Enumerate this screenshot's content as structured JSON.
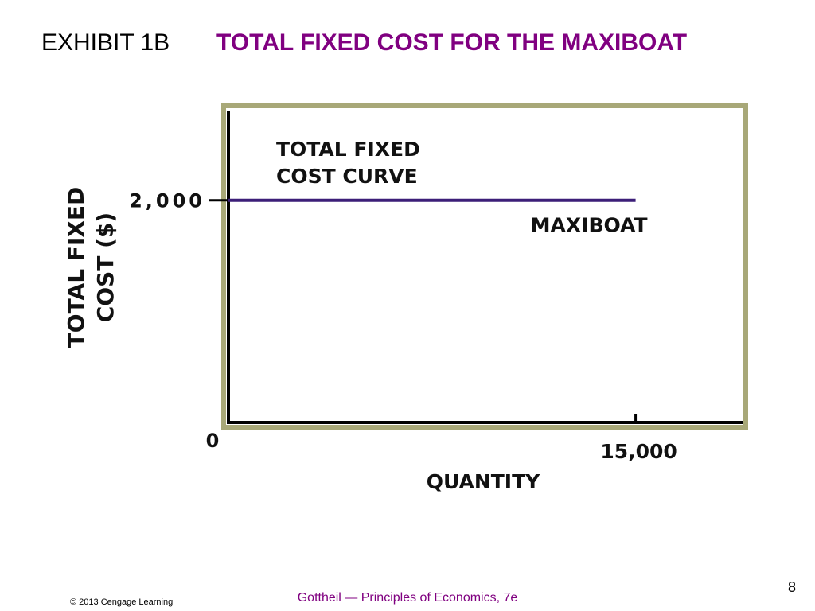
{
  "slide": {
    "exhibit": "EXHIBIT 1B",
    "title": "TOTAL FIXED COST FOR THE MAXIBOAT",
    "copyright": "© 2013 Cengage Learning",
    "source": "Gottheil — Principles of Economics, 7e",
    "page": "8"
  },
  "chart_data": {
    "type": "line",
    "xlabel": "QUANTITY",
    "ylabel": [
      "TOTAL FIXED",
      "COST ($)"
    ],
    "annotation": [
      "TOTAL FIXED",
      "COST CURVE"
    ],
    "x": [
      0,
      15000
    ],
    "series": [
      {
        "name": "MAXIBOAT",
        "color": "#3c1e78",
        "values": [
          2000,
          2000
        ]
      }
    ],
    "xlim": [
      0,
      19000
    ],
    "ylim": [
      0,
      2800
    ],
    "xticks": [
      0,
      {
        "value": 15000,
        "label": "15,000"
      }
    ],
    "yticks": [
      {
        "value": 2000,
        "label": "2,000"
      }
    ]
  }
}
